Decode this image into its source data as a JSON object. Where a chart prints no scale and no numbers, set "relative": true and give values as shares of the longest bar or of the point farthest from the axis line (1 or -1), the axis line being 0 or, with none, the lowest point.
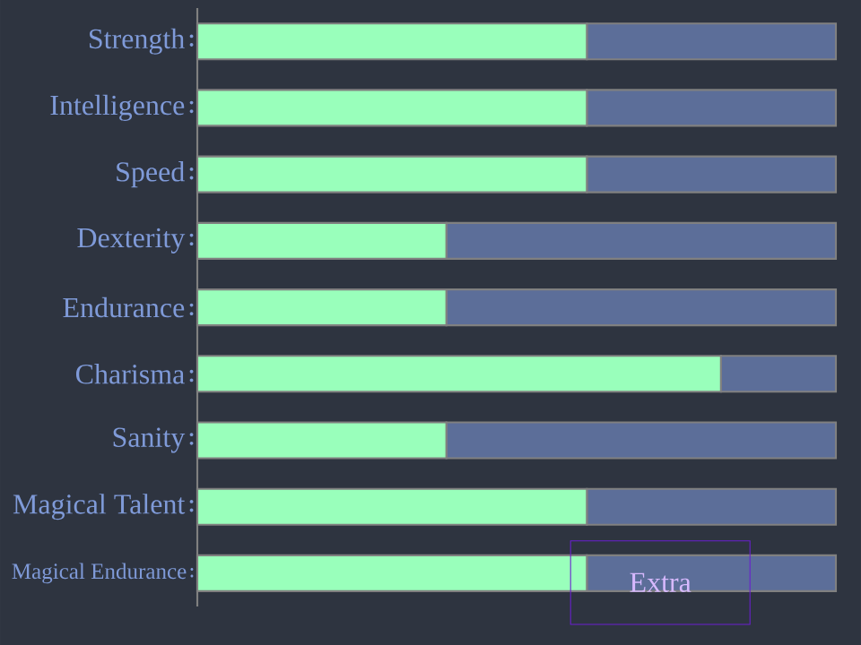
{
  "chart_data": {
    "type": "bar",
    "orientation": "horizontal",
    "stacked": true,
    "relative": true,
    "categories": [
      "Strength",
      "Intelligence",
      "Speed",
      "Dexterity",
      "Endurance",
      "Charisma",
      "Sanity",
      "Magical Talent",
      "Magical Endurance"
    ],
    "series": [
      {
        "color": "#99ffbb",
        "values": [
          0.61,
          0.61,
          0.61,
          0.39,
          0.39,
          0.82,
          0.39,
          0.61,
          0.61
        ]
      },
      {
        "color": "#5c6e99",
        "values": [
          0.39,
          0.39,
          0.39,
          0.61,
          0.61,
          0.18,
          0.61,
          0.39,
          0.39
        ]
      }
    ],
    "annotations": [
      "Extra"
    ]
  }
}
